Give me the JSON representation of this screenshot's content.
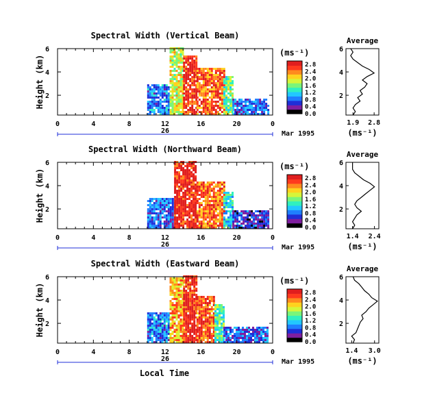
{
  "colors": {
    "colormap": [
      "#000000",
      "#7f1fa0",
      "#1f2fd8",
      "#1f7fff",
      "#22c8ff",
      "#30f0c0",
      "#7af57a",
      "#d6f53a",
      "#ffd21f",
      "#ff8a1f",
      "#ff3a1f",
      "#e01f1f"
    ],
    "line": "#000000",
    "background": "#ffffff"
  },
  "chart_data": [
    {
      "type": "heatmap",
      "title": "Spectral Width (Vertical Beam)",
      "ylabel": "Height (km)",
      "y_ticks": [
        "2",
        "4",
        "6"
      ],
      "ylim": [
        0.3,
        6
      ],
      "x_ticks": [
        "0",
        "4",
        "8",
        "12",
        "16",
        "20",
        "0"
      ],
      "xlim": [
        0,
        24
      ],
      "date_label": "26",
      "month_label": "Mar 1995",
      "colorbar": {
        "unit": "(ms⁻¹)",
        "ticks": [
          "0.0",
          "0.4",
          "0.8",
          "1.2",
          "1.6",
          "2.0",
          "2.4",
          "2.8"
        ],
        "range": [
          0,
          3.0
        ]
      },
      "regions": [
        {
          "t_start": 10,
          "t_end": 12.5,
          "h_start": 0.3,
          "h_end": 2.8,
          "level": 0.9
        },
        {
          "t_start": 12.5,
          "t_end": 14,
          "h_start": 0.3,
          "h_end": 6,
          "level": 1.9
        },
        {
          "t_start": 14,
          "t_end": 15.5,
          "h_start": 0.3,
          "h_end": 5.4,
          "level": 2.8
        },
        {
          "t_start": 15.5,
          "t_end": 18.5,
          "h_start": 0.3,
          "h_end": 4.3,
          "level": 2.5
        },
        {
          "t_start": 18.5,
          "t_end": 19.5,
          "h_start": 0.3,
          "h_end": 3.5,
          "level": 1.6
        },
        {
          "t_start": 19.5,
          "t_end": 23.5,
          "h_start": 0.3,
          "h_end": 1.6,
          "level": 0.8
        }
      ],
      "profile": {
        "title": "Average",
        "xlabel": "(ms⁻¹)",
        "x_ticks": [
          "1.9",
          "2.8"
        ],
        "xlim": [
          1.6,
          3.0
        ],
        "y_ticks": [
          "2",
          "4",
          "6"
        ],
        "ylim": [
          0.3,
          6
        ],
        "points": [
          [
            1.9,
            0.3
          ],
          [
            2.0,
            0.6
          ],
          [
            1.9,
            0.9
          ],
          [
            2.0,
            1.2
          ],
          [
            2.2,
            1.5
          ],
          [
            2.1,
            1.8
          ],
          [
            2.3,
            2.1
          ],
          [
            2.2,
            2.4
          ],
          [
            2.4,
            2.7
          ],
          [
            2.5,
            3.0
          ],
          [
            2.3,
            3.3
          ],
          [
            2.5,
            3.6
          ],
          [
            2.8,
            3.9
          ],
          [
            2.6,
            4.2
          ],
          [
            2.3,
            4.5
          ],
          [
            2.1,
            4.8
          ],
          [
            1.9,
            5.1
          ],
          [
            1.8,
            5.4
          ],
          [
            1.9,
            5.7
          ],
          [
            1.8,
            6.0
          ]
        ]
      }
    },
    {
      "type": "heatmap",
      "title": "Spectral Width (Northward Beam)",
      "ylabel": "Height (km)",
      "y_ticks": [
        "2",
        "4",
        "6"
      ],
      "ylim": [
        0.3,
        6
      ],
      "x_ticks": [
        "0",
        "4",
        "8",
        "12",
        "16",
        "20",
        "0"
      ],
      "xlim": [
        0,
        24
      ],
      "date_label": "26",
      "month_label": "Mar 1995",
      "colorbar": {
        "unit": "(ms⁻¹)",
        "ticks": [
          "0.0",
          "0.4",
          "0.8",
          "1.2",
          "1.6",
          "2.0",
          "2.4",
          "2.8"
        ],
        "range": [
          0,
          3.0
        ]
      },
      "regions": [
        {
          "t_start": 10,
          "t_end": 13,
          "h_start": 0.3,
          "h_end": 2.8,
          "level": 0.8
        },
        {
          "t_start": 13,
          "t_end": 15.5,
          "h_start": 0.3,
          "h_end": 6,
          "level": 2.8
        },
        {
          "t_start": 15.5,
          "t_end": 18.5,
          "h_start": 0.3,
          "h_end": 4.3,
          "level": 2.5
        },
        {
          "t_start": 18.5,
          "t_end": 19.5,
          "h_start": 0.3,
          "h_end": 3.4,
          "level": 1.2
        },
        {
          "t_start": 19.5,
          "t_end": 23.5,
          "h_start": 0.3,
          "h_end": 1.8,
          "level": 0.6
        }
      ],
      "profile": {
        "title": "Average",
        "xlabel": "(ms⁻¹)",
        "x_ticks": [
          "1.4",
          "2.4"
        ],
        "xlim": [
          1.1,
          2.6
        ],
        "y_ticks": [
          "2",
          "4",
          "6"
        ],
        "ylim": [
          0.3,
          6
        ],
        "points": [
          [
            1.4,
            0.3
          ],
          [
            1.5,
            0.6
          ],
          [
            1.4,
            0.9
          ],
          [
            1.5,
            1.2
          ],
          [
            1.6,
            1.5
          ],
          [
            1.8,
            1.8
          ],
          [
            1.6,
            2.1
          ],
          [
            1.5,
            2.4
          ],
          [
            1.6,
            2.7
          ],
          [
            1.8,
            3.0
          ],
          [
            2.0,
            3.3
          ],
          [
            2.2,
            3.6
          ],
          [
            2.4,
            3.9
          ],
          [
            2.2,
            4.2
          ],
          [
            1.9,
            4.5
          ],
          [
            1.7,
            4.8
          ],
          [
            1.5,
            5.1
          ],
          [
            1.4,
            5.4
          ],
          [
            1.4,
            5.7
          ],
          [
            1.4,
            6.0
          ]
        ]
      }
    },
    {
      "type": "heatmap",
      "title": "Spectral Width (Eastward Beam)",
      "ylabel": "Height (km)",
      "y_ticks": [
        "2",
        "4",
        "6"
      ],
      "ylim": [
        0.3,
        6
      ],
      "x_ticks": [
        "0",
        "4",
        "8",
        "12",
        "16",
        "20",
        "0"
      ],
      "xlim": [
        0,
        24
      ],
      "date_label": "26",
      "month_label": "Mar 1995",
      "xlabel": "Local Time",
      "colorbar": {
        "unit": "(ms⁻¹)",
        "ticks": [
          "0.0",
          "0.4",
          "0.8",
          "1.2",
          "1.6",
          "2.0",
          "2.4",
          "2.8"
        ],
        "range": [
          0,
          3.0
        ]
      },
      "regions": [
        {
          "t_start": 10,
          "t_end": 12.5,
          "h_start": 0.3,
          "h_end": 2.8,
          "level": 0.9
        },
        {
          "t_start": 12.5,
          "t_end": 14,
          "h_start": 0.3,
          "h_end": 5.8,
          "level": 2.2
        },
        {
          "t_start": 14,
          "t_end": 15.5,
          "h_start": 0.3,
          "h_end": 6,
          "level": 2.8
        },
        {
          "t_start": 15.5,
          "t_end": 17.5,
          "h_start": 0.3,
          "h_end": 4.2,
          "level": 2.6
        },
        {
          "t_start": 17.5,
          "t_end": 18.5,
          "h_start": 0.3,
          "h_end": 3.6,
          "level": 1.5
        },
        {
          "t_start": 18.5,
          "t_end": 23.5,
          "h_start": 0.3,
          "h_end": 1.6,
          "level": 0.7
        }
      ],
      "profile": {
        "title": "Average",
        "xlabel": "(ms⁻¹)",
        "x_ticks": [
          "1.4",
          "3.0"
        ],
        "xlim": [
          1.0,
          3.3
        ],
        "y_ticks": [
          "2",
          "4",
          "6"
        ],
        "ylim": [
          0.3,
          6
        ],
        "points": [
          [
            1.5,
            0.3
          ],
          [
            1.6,
            0.6
          ],
          [
            1.4,
            0.9
          ],
          [
            1.7,
            1.2
          ],
          [
            1.8,
            1.5
          ],
          [
            1.9,
            1.8
          ],
          [
            2.0,
            2.1
          ],
          [
            2.2,
            2.4
          ],
          [
            2.1,
            2.7
          ],
          [
            2.4,
            3.0
          ],
          [
            2.6,
            3.3
          ],
          [
            2.9,
            3.6
          ],
          [
            3.2,
            3.9
          ],
          [
            2.8,
            4.2
          ],
          [
            2.6,
            4.5
          ],
          [
            2.3,
            4.8
          ],
          [
            2.1,
            5.1
          ],
          [
            1.9,
            5.4
          ],
          [
            1.6,
            5.7
          ],
          [
            1.5,
            6.0
          ]
        ]
      }
    }
  ]
}
